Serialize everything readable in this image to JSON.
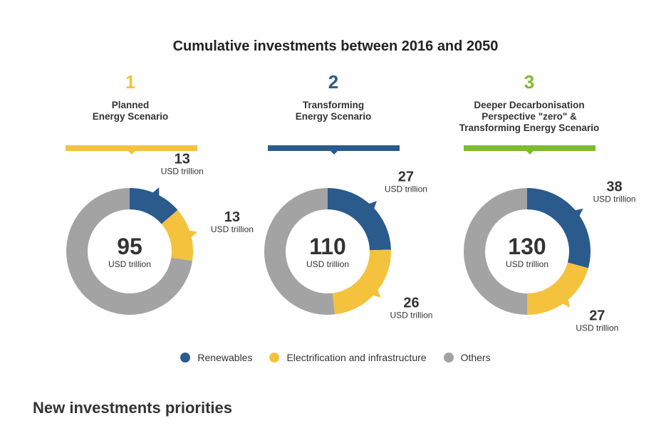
{
  "header": {
    "title": "Cumulative investments between 2016 and 2050"
  },
  "colors": {
    "renewables": "#2a5b8c",
    "electrification": "#f5c23d",
    "others": "#a3a3a3",
    "scenario1": "#f5c23d",
    "scenario2": "#2a5b8c",
    "scenario3": "#7cbd2b"
  },
  "scenarios": [
    {
      "number": "1",
      "name_lines": [
        "Planned",
        "Energy Scenario"
      ]
    },
    {
      "number": "2",
      "name_lines": [
        "Transforming",
        "Energy Scenario"
      ]
    },
    {
      "number": "3",
      "name_lines": [
        "Deeper Decarbonisation",
        "Perspective \"zero\" &",
        "Transforming Energy Scenario"
      ]
    }
  ],
  "chart_data": {
    "type": "pie",
    "unit": "USD trillion",
    "series_names": [
      "Renewables",
      "Electrification and infrastructure",
      "Others"
    ],
    "charts": [
      {
        "total": 95,
        "values": [
          13,
          13,
          69
        ]
      },
      {
        "total": 110,
        "values": [
          27,
          26,
          57
        ]
      },
      {
        "total": 130,
        "values": [
          38,
          27,
          65
        ]
      }
    ]
  },
  "legend": [
    {
      "label": "Renewables",
      "color": "#2a5b8c"
    },
    {
      "label": "Electrification and infrastructure",
      "color": "#f5c23d"
    },
    {
      "label": "Others",
      "color": "#a3a3a3"
    }
  ],
  "section": {
    "title": "New investments priorities"
  }
}
